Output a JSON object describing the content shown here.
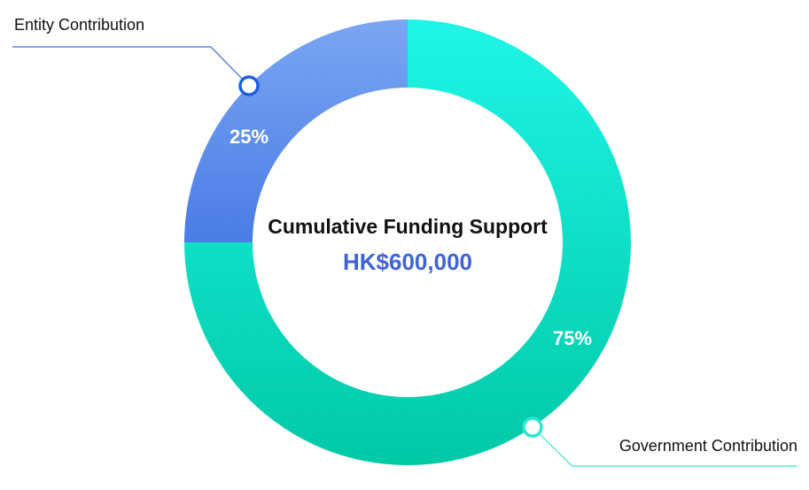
{
  "chart_data": {
    "type": "pie",
    "variant": "donut",
    "center_title": "Cumulative Funding Support",
    "center_value": "HK$600,000",
    "slices": [
      {
        "name": "Government Contribution",
        "value": 75,
        "label": "75%",
        "color_start": "#1ff5e7",
        "color_end": "#00c9a6",
        "marker_color": "#28e8d6"
      },
      {
        "name": "Entity Contribution",
        "value": 25,
        "label": "25%",
        "color_start": "#7aa6f2",
        "color_end": "#4a7ce6",
        "marker_color": "#1d5fe0"
      }
    ],
    "start_angle": "12 o'clock",
    "direction": "clockwise",
    "legend": "callout"
  },
  "colors": {
    "center_title": "#111111",
    "center_value": "#3f63d6",
    "slice_label": "#ffffff",
    "callout_text": "#111111",
    "background": "#ffffff"
  }
}
